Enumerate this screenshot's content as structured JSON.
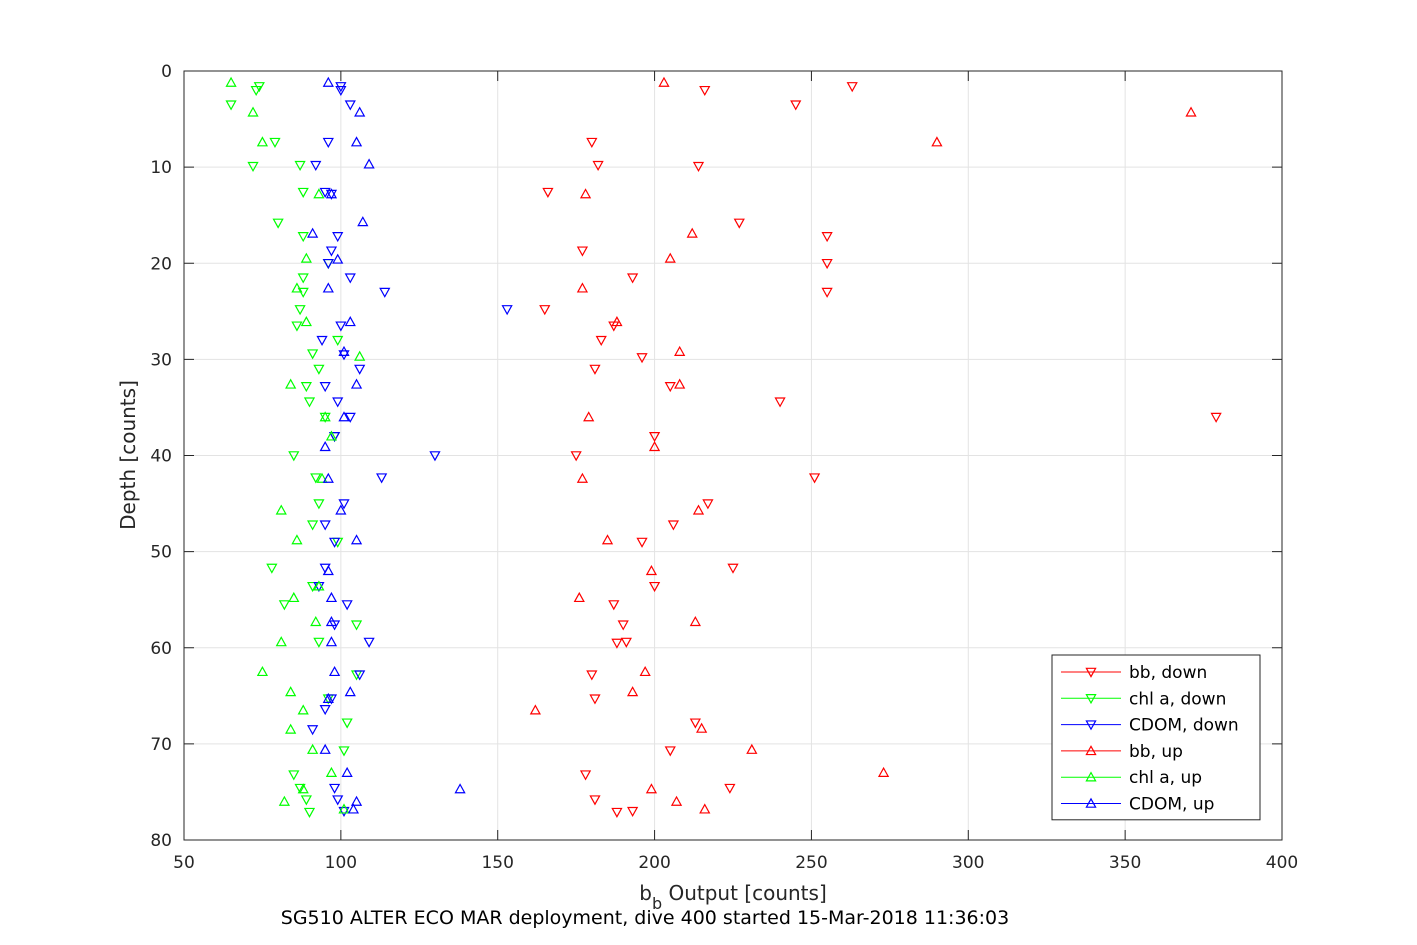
{
  "chart_data": {
    "type": "scatter",
    "title": "",
    "xlabel": "b",
    "xlabel_sub": "b",
    "xlabel_rest": " Output [counts]",
    "ylabel": "Depth [counts]",
    "caption": "SG510 ALTER ECO MAR deployment, dive 400 started 15-Mar-2018 11:36:03",
    "xlim": [
      50,
      400
    ],
    "ylim": [
      0,
      80
    ],
    "y_reversed": true,
    "xticks": [
      50,
      100,
      150,
      200,
      250,
      300,
      350,
      400
    ],
    "yticks": [
      0,
      10,
      20,
      30,
      40,
      50,
      60,
      70,
      80
    ],
    "grid": true,
    "legend_position": "bottom-right",
    "series": [
      {
        "name": "bb, down",
        "color": "#ff0000",
        "marker": "triangle-down",
        "points": [
          [
            263,
            1.6
          ],
          [
            216,
            2.0
          ],
          [
            245,
            3.5
          ],
          [
            180,
            7.4
          ],
          [
            182,
            9.8
          ],
          [
            214,
            9.9
          ],
          [
            166,
            12.6
          ],
          [
            227,
            15.8
          ],
          [
            255,
            17.2
          ],
          [
            177,
            18.7
          ],
          [
            255,
            20.0
          ],
          [
            193,
            21.5
          ],
          [
            255,
            23.0
          ],
          [
            165,
            24.8
          ],
          [
            187,
            26.5
          ],
          [
            183,
            28.0
          ],
          [
            196,
            29.8
          ],
          [
            181,
            31.0
          ],
          [
            205,
            32.8
          ],
          [
            240,
            34.4
          ],
          [
            379,
            36.0
          ],
          [
            200,
            38.0
          ],
          [
            175,
            40.0
          ],
          [
            251,
            42.3
          ],
          [
            217,
            45.0
          ],
          [
            206,
            47.2
          ],
          [
            196,
            49.0
          ],
          [
            225,
            51.7
          ],
          [
            200,
            53.6
          ],
          [
            187,
            55.5
          ],
          [
            190,
            57.6
          ],
          [
            191,
            59.4
          ],
          [
            188,
            59.5
          ],
          [
            180,
            62.8
          ],
          [
            181,
            65.3
          ],
          [
            213,
            67.8
          ],
          [
            205,
            70.7
          ],
          [
            178,
            73.2
          ],
          [
            224,
            74.6
          ],
          [
            181,
            75.8
          ],
          [
            193,
            77.0
          ],
          [
            188,
            77.1
          ]
        ]
      },
      {
        "name": "chl a, down",
        "color": "#00ff00",
        "marker": "triangle-down",
        "points": [
          [
            74,
            1.6
          ],
          [
            73,
            2.0
          ],
          [
            65,
            3.5
          ],
          [
            79,
            7.4
          ],
          [
            87,
            9.8
          ],
          [
            72,
            9.9
          ],
          [
            88,
            12.6
          ],
          [
            80,
            15.8
          ],
          [
            88,
            17.2
          ],
          [
            96,
            20.0
          ],
          [
            88,
            21.5
          ],
          [
            88,
            23.0
          ],
          [
            87,
            24.8
          ],
          [
            86,
            26.5
          ],
          [
            99,
            28.0
          ],
          [
            91,
            29.4
          ],
          [
            93,
            31.0
          ],
          [
            89,
            32.8
          ],
          [
            90,
            34.4
          ],
          [
            95,
            36.0
          ],
          [
            98,
            38.0
          ],
          [
            85,
            40.0
          ],
          [
            92,
            42.3
          ],
          [
            93,
            45.0
          ],
          [
            91,
            47.2
          ],
          [
            99,
            49.0
          ],
          [
            78,
            51.7
          ],
          [
            91,
            53.6
          ],
          [
            82,
            55.5
          ],
          [
            105,
            57.6
          ],
          [
            93,
            59.4
          ],
          [
            105,
            62.8
          ],
          [
            96,
            65.3
          ],
          [
            102,
            67.8
          ],
          [
            101,
            70.7
          ],
          [
            85,
            73.2
          ],
          [
            87,
            74.6
          ],
          [
            89,
            75.8
          ],
          [
            90,
            77.1
          ]
        ]
      },
      {
        "name": "CDOM, down",
        "color": "#0000ff",
        "marker": "triangle-down",
        "points": [
          [
            100,
            1.6
          ],
          [
            100,
            2.0
          ],
          [
            103,
            3.5
          ],
          [
            96,
            7.4
          ],
          [
            92,
            9.8
          ],
          [
            95,
            12.6
          ],
          [
            97,
            12.8
          ],
          [
            99,
            17.2
          ],
          [
            97,
            18.7
          ],
          [
            96,
            20.0
          ],
          [
            103,
            21.5
          ],
          [
            114,
            23.0
          ],
          [
            153,
            24.8
          ],
          [
            100,
            26.5
          ],
          [
            94,
            28.0
          ],
          [
            101,
            29.5
          ],
          [
            106,
            31.0
          ],
          [
            95,
            32.8
          ],
          [
            99,
            34.4
          ],
          [
            103,
            36.0
          ],
          [
            98,
            38.0
          ],
          [
            130,
            40.0
          ],
          [
            113,
            42.3
          ],
          [
            101,
            45.0
          ],
          [
            95,
            47.2
          ],
          [
            98,
            49.0
          ],
          [
            95,
            51.7
          ],
          [
            93,
            53.6
          ],
          [
            102,
            55.5
          ],
          [
            98,
            57.6
          ],
          [
            109,
            59.4
          ],
          [
            106,
            62.8
          ],
          [
            97,
            65.3
          ],
          [
            95,
            66.4
          ],
          [
            91,
            68.5
          ],
          [
            98,
            74.6
          ],
          [
            99,
            75.8
          ],
          [
            101,
            77.0
          ]
        ]
      },
      {
        "name": "bb, up",
        "color": "#ff0000",
        "marker": "triangle-up",
        "points": [
          [
            203,
            1.2
          ],
          [
            371,
            4.3
          ],
          [
            290,
            7.4
          ],
          [
            178,
            12.8
          ],
          [
            212,
            16.9
          ],
          [
            205,
            19.5
          ],
          [
            177,
            22.6
          ],
          [
            188,
            26.1
          ],
          [
            208,
            29.2
          ],
          [
            208,
            32.6
          ],
          [
            179,
            36.0
          ],
          [
            200,
            39.1
          ],
          [
            177,
            42.4
          ],
          [
            214,
            45.7
          ],
          [
            185,
            48.8
          ],
          [
            199,
            52.0
          ],
          [
            176,
            54.8
          ],
          [
            213,
            57.3
          ],
          [
            197,
            62.5
          ],
          [
            193,
            64.6
          ],
          [
            162,
            66.5
          ],
          [
            215,
            68.4
          ],
          [
            231,
            70.6
          ],
          [
            273,
            73.0
          ],
          [
            199,
            74.7
          ],
          [
            207,
            76.0
          ],
          [
            216,
            76.8
          ]
        ]
      },
      {
        "name": "chl a, up",
        "color": "#00ff00",
        "marker": "triangle-up",
        "points": [
          [
            65,
            1.2
          ],
          [
            72,
            4.3
          ],
          [
            75,
            7.4
          ],
          [
            93,
            12.8
          ],
          [
            89,
            19.5
          ],
          [
            86,
            22.6
          ],
          [
            89,
            26.1
          ],
          [
            106,
            29.7
          ],
          [
            84,
            32.6
          ],
          [
            95,
            36.0
          ],
          [
            97,
            38.0
          ],
          [
            94,
            42.4
          ],
          [
            81,
            45.7
          ],
          [
            86,
            48.8
          ],
          [
            93,
            53.6
          ],
          [
            85,
            54.8
          ],
          [
            92,
            57.3
          ],
          [
            81,
            59.4
          ],
          [
            75,
            62.5
          ],
          [
            84,
            64.6
          ],
          [
            88,
            66.5
          ],
          [
            84,
            68.5
          ],
          [
            91,
            70.6
          ],
          [
            97,
            73.0
          ],
          [
            88,
            74.7
          ],
          [
            82,
            76.0
          ],
          [
            101,
            76.8
          ]
        ]
      },
      {
        "name": "CDOM, up",
        "color": "#0000ff",
        "marker": "triangle-up",
        "points": [
          [
            96,
            1.2
          ],
          [
            106,
            4.3
          ],
          [
            105,
            7.4
          ],
          [
            109,
            9.7
          ],
          [
            97,
            12.8
          ],
          [
            107,
            15.7
          ],
          [
            91,
            16.9
          ],
          [
            99,
            19.6
          ],
          [
            96,
            22.6
          ],
          [
            103,
            26.1
          ],
          [
            101,
            29.2
          ],
          [
            105,
            32.6
          ],
          [
            101,
            36.0
          ],
          [
            95,
            39.1
          ],
          [
            96,
            42.4
          ],
          [
            100,
            45.7
          ],
          [
            105,
            48.8
          ],
          [
            96,
            52.0
          ],
          [
            97,
            54.8
          ],
          [
            97,
            57.3
          ],
          [
            97,
            59.4
          ],
          [
            98,
            62.5
          ],
          [
            103,
            64.6
          ],
          [
            96,
            65.3
          ],
          [
            95,
            70.6
          ],
          [
            102,
            73.0
          ],
          [
            138,
            74.7
          ],
          [
            105,
            76.0
          ],
          [
            104,
            76.8
          ]
        ]
      }
    ]
  }
}
